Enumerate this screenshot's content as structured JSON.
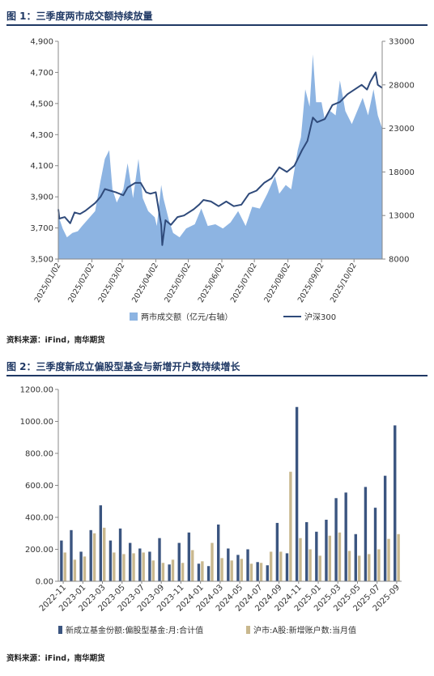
{
  "figure1": {
    "title": "图 1：三季度两市成交额持续放量",
    "source": "资料来源：iFind，南华期货"
  },
  "figure2": {
    "title": "图 2：三季度新成立偏股型基金与新增开户数持续增长",
    "source": "资料来源：iFind，南华期货"
  },
  "colors": {
    "title": "#1f3864",
    "area": "#8db4e2",
    "line": "#2f4a7a",
    "bar1": "#3b5580",
    "bar2": "#c9b88e"
  },
  "chart_data": [
    {
      "type": "area",
      "title": "",
      "x_ticks": [
        "2025/01/02",
        "2025/02/02",
        "2025/03/02",
        "2025/04/02",
        "2025/05/02",
        "2025/06/02",
        "2025/07/02",
        "2025/08/02",
        "2025/09/02",
        "2025/10/02"
      ],
      "y_left_ticks": [
        "3,500",
        "3,700",
        "3,900",
        "4,100",
        "4,300",
        "4,500",
        "4,700",
        "4,900"
      ],
      "y_right_ticks": [
        "8000",
        "13000",
        "18000",
        "23000",
        "28000",
        "33000"
      ],
      "ylim_left": [
        3500,
        4900
      ],
      "ylim_right": [
        8000,
        33000
      ],
      "x_start": "2025/01/02",
      "x_end": "2025/10/28",
      "grid": false,
      "legend_position": "bottom",
      "series": [
        {
          "name": "两市成交额（亿元/右轴）",
          "type": "area",
          "axis": "right",
          "x": [
            "2025/01/02",
            "2025/01/06",
            "2025/01/10",
            "2025/01/15",
            "2025/01/20",
            "2025/01/24",
            "2025/02/05",
            "2025/02/10",
            "2025/02/14",
            "2025/02/18",
            "2025/02/21",
            "2025/02/25",
            "2025/03/03",
            "2025/03/07",
            "2025/03/12",
            "2025/03/17",
            "2025/03/21",
            "2025/03/26",
            "2025/04/01",
            "2025/04/03",
            "2025/04/07",
            "2025/04/09",
            "2025/04/14",
            "2025/04/18",
            "2025/04/24",
            "2025/04/30",
            "2025/05/08",
            "2025/05/14",
            "2025/05/20",
            "2025/05/27",
            "2025/06/03",
            "2025/06/10",
            "2025/06/17",
            "2025/06/24",
            "2025/06/30",
            "2025/07/07",
            "2025/07/14",
            "2025/07/21",
            "2025/07/25",
            "2025/07/31",
            "2025/08/05",
            "2025/08/11",
            "2025/08/14",
            "2025/08/18",
            "2025/08/22",
            "2025/08/25",
            "2025/08/28",
            "2025/09/02",
            "2025/09/05",
            "2025/09/10",
            "2025/09/15",
            "2025/09/19",
            "2025/09/24",
            "2025/09/30",
            "2025/10/10",
            "2025/10/15",
            "2025/10/20",
            "2025/10/24",
            "2025/10/28"
          ],
          "values": [
            13000,
            11500,
            10500,
            11000,
            11200,
            11800,
            13500,
            17000,
            19500,
            20500,
            16000,
            14500,
            16000,
            19000,
            15000,
            19500,
            15000,
            13500,
            12800,
            11800,
            16500,
            15000,
            12500,
            11000,
            10500,
            11500,
            12000,
            13800,
            11800,
            12000,
            11500,
            12200,
            13500,
            11800,
            14000,
            13800,
            15500,
            17500,
            15500,
            16500,
            16000,
            20500,
            22000,
            27500,
            25500,
            31500,
            26000,
            26000,
            24000,
            25000,
            24500,
            28500,
            25000,
            23500,
            26500,
            24500,
            27500,
            24500,
            23000
          ]
        },
        {
          "name": "沪深300",
          "type": "line",
          "axis": "left",
          "x": [
            "2025/01/02",
            "2025/01/03",
            "2025/01/08",
            "2025/01/13",
            "2025/01/17",
            "2025/01/22",
            "2025/01/27",
            "2025/02/05",
            "2025/02/10",
            "2025/02/14",
            "2025/02/19",
            "2025/02/24",
            "2025/03/03",
            "2025/03/07",
            "2025/03/14",
            "2025/03/19",
            "2025/03/24",
            "2025/03/28",
            "2025/04/02",
            "2025/04/07",
            "2025/04/08",
            "2025/04/11",
            "2025/04/16",
            "2025/04/22",
            "2025/04/28",
            "2025/05/07",
            "2025/05/12",
            "2025/05/16",
            "2025/05/23",
            "2025/05/30",
            "2025/06/06",
            "2025/06/13",
            "2025/06/20",
            "2025/06/27",
            "2025/07/04",
            "2025/07/11",
            "2025/07/18",
            "2025/07/25",
            "2025/08/01",
            "2025/08/08",
            "2025/08/15",
            "2025/08/20",
            "2025/08/25",
            "2025/08/29",
            "2025/09/05",
            "2025/09/12",
            "2025/09/19",
            "2025/09/26",
            "2025/10/09",
            "2025/10/14",
            "2025/10/17",
            "2025/10/22",
            "2025/10/24",
            "2025/10/28"
          ],
          "values": [
            3820,
            3760,
            3770,
            3730,
            3800,
            3790,
            3810,
            3860,
            3900,
            3950,
            3940,
            3930,
            3910,
            3960,
            3990,
            3990,
            3930,
            3920,
            3930,
            3720,
            3590,
            3750,
            3720,
            3770,
            3780,
            3820,
            3850,
            3880,
            3870,
            3840,
            3870,
            3840,
            3850,
            3920,
            3940,
            3990,
            4020,
            4090,
            4060,
            4100,
            4200,
            4260,
            4410,
            4380,
            4400,
            4490,
            4510,
            4560,
            4620,
            4590,
            4640,
            4700,
            4620,
            4600
          ]
        }
      ]
    },
    {
      "type": "bar",
      "title": "",
      "ylim": [
        0,
        1200
      ],
      "y_ticks": [
        "0.00",
        "200.00",
        "400.00",
        "600.00",
        "800.00",
        "1000.00",
        "1200.00"
      ],
      "x_tick_labels": [
        "2022-11",
        "2023-01",
        "2023-03",
        "2023-05",
        "2023-07",
        "2023-09",
        "2023-11",
        "2024-01",
        "2024-03",
        "2024-05",
        "2024-07",
        "2024-09",
        "2024-11",
        "2025-01",
        "2025-03",
        "2025-05",
        "2025-07",
        "2025-09"
      ],
      "grid": false,
      "legend_position": "bottom",
      "categories": [
        "2022-11",
        "2022-12",
        "2023-01",
        "2023-02",
        "2023-03",
        "2023-04",
        "2023-05",
        "2023-06",
        "2023-07",
        "2023-08",
        "2023-09",
        "2023-10",
        "2023-11",
        "2023-12",
        "2024-01",
        "2024-02",
        "2024-03",
        "2024-04",
        "2024-05",
        "2024-06",
        "2024-07",
        "2024-08",
        "2024-09",
        "2024-10",
        "2024-11",
        "2024-12",
        "2025-01",
        "2025-02",
        "2025-03",
        "2025-04",
        "2025-05",
        "2025-06",
        "2025-07",
        "2025-08",
        "2025-09"
      ],
      "series": [
        {
          "name": "新成立基金份额:偏股型基金:月:合计值",
          "values": [
            255,
            320,
            185,
            320,
            475,
            255,
            330,
            240,
            205,
            185,
            270,
            105,
            240,
            305,
            110,
            95,
            355,
            205,
            165,
            200,
            120,
            100,
            365,
            175,
            1090,
            370,
            310,
            385,
            520,
            555,
            295,
            590,
            460,
            660,
            975
          ]
        },
        {
          "name": "沪市:A股:新增账户数:当月值",
          "values": [
            180,
            135,
            155,
            300,
            335,
            180,
            170,
            175,
            180,
            130,
            115,
            135,
            115,
            195,
            125,
            240,
            145,
            130,
            140,
            110,
            115,
            185,
            185,
            685,
            270,
            200,
            160,
            285,
            305,
            190,
            160,
            170,
            200,
            265,
            295
          ]
        }
      ]
    }
  ]
}
